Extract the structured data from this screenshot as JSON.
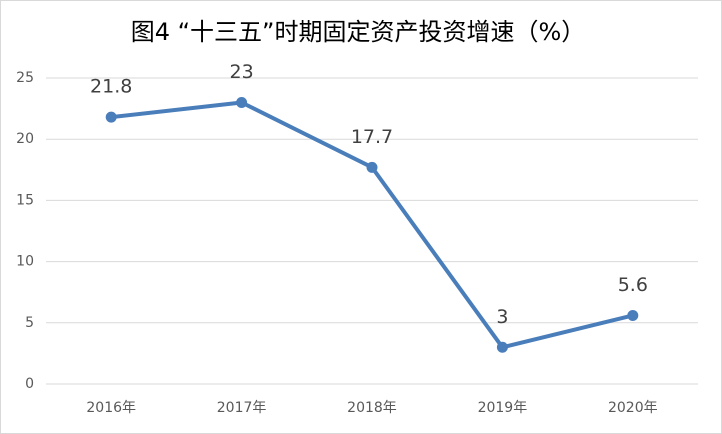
{
  "chart_data": {
    "type": "line",
    "title": "图4 “十三五”时期固定资产投资增速（%）",
    "categories": [
      "2016年",
      "2017年",
      "2018年",
      "2019年",
      "2020年"
    ],
    "series": [
      {
        "name": "固定资产投资增速",
        "color": "#4a7ebb",
        "values": [
          21.8,
          23,
          17.7,
          3,
          5.6
        ]
      }
    ],
    "ylim": [
      0,
      25
    ],
    "yticks": [
      0,
      5,
      10,
      15,
      20,
      25
    ],
    "grid": true,
    "data_labels": true
  }
}
